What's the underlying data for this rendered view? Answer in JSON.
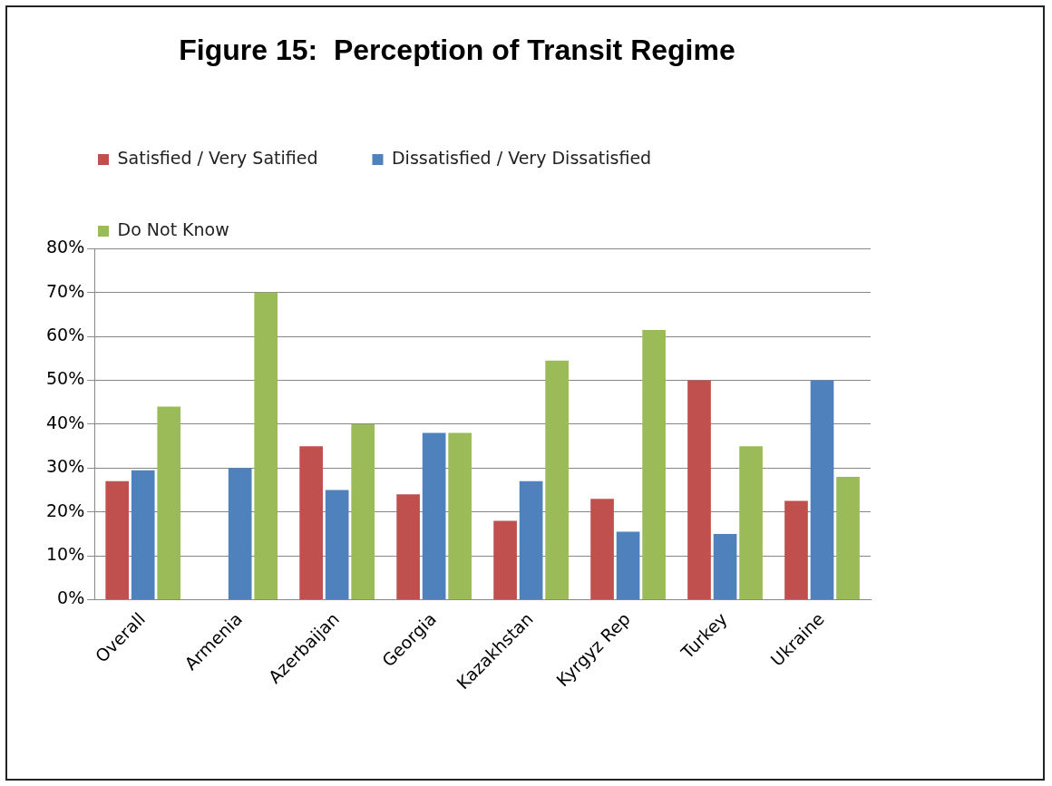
{
  "chart_data": {
    "type": "bar",
    "title": "Figure 15:  Perception of Transit Regime",
    "categories": [
      "Overall",
      "Armenia",
      "Azerbaijan",
      "Georgia",
      "Kazakhstan",
      "Kyrgyz Rep",
      "Turkey",
      "Ukraine"
    ],
    "series": [
      {
        "name": "Satisfied / Very Satified",
        "color": "#c0504d",
        "values": [
          27,
          0,
          35,
          24,
          18,
          23,
          50,
          22.5
        ]
      },
      {
        "name": "Dissatisfied / Very Dissatisfied",
        "color": "#4f81bd",
        "values": [
          29.5,
          30,
          25,
          38,
          27,
          15.5,
          15,
          50
        ]
      },
      {
        "name": "Do Not Know",
        "color": "#9bbb59",
        "values": [
          44,
          70,
          40,
          38,
          54.5,
          61.5,
          35,
          28
        ]
      }
    ],
    "ylim": [
      0,
      80
    ],
    "yticks": [
      {
        "value": 0,
        "label": "0%"
      },
      {
        "value": 10,
        "label": "10%"
      },
      {
        "value": 20,
        "label": "20%"
      },
      {
        "value": 30,
        "label": "30%"
      },
      {
        "value": 40,
        "label": "40%"
      },
      {
        "value": 50,
        "label": "50%"
      },
      {
        "value": 60,
        "label": "60%"
      },
      {
        "value": 70,
        "label": "70%"
      },
      {
        "value": 80,
        "label": "80%"
      }
    ],
    "grid": "y",
    "legend": "top"
  }
}
